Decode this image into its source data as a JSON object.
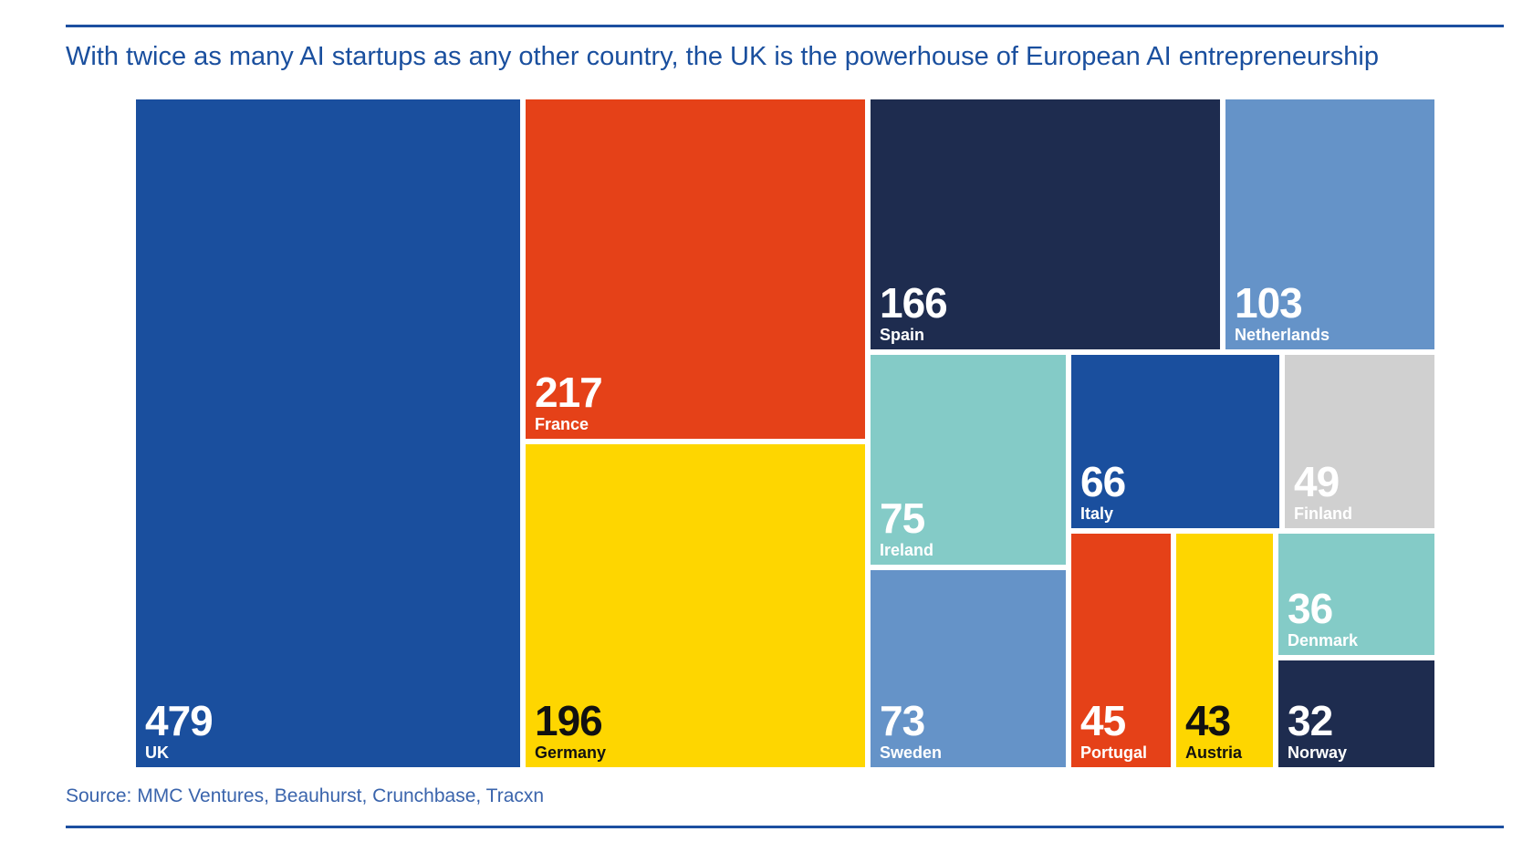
{
  "title": "With twice as many AI startups as any other country, the UK is the powerhouse of European AI entrepreneurship",
  "source": "Source: MMC Ventures, Beauhurst, Crunchbase, Tracxn",
  "colors": {
    "rule": "#1c4fa0",
    "title": "#1a4f9e",
    "source": "#3a64ac"
  },
  "chart_data": {
    "type": "treemap",
    "title": "With twice as many AI startups as any other country, the UK is the powerhouse of European AI entrepreneurship",
    "categories": [
      "UK",
      "France",
      "Germany",
      "Spain",
      "Netherlands",
      "Ireland",
      "Sweden",
      "Italy",
      "Finland",
      "Portugal",
      "Austria",
      "Denmark",
      "Norway"
    ],
    "values": [
      479,
      217,
      196,
      166,
      103,
      75,
      73,
      66,
      49,
      45,
      43,
      36,
      32
    ],
    "colors": [
      "#1a4f9e",
      "#e54118",
      "#fed600",
      "#1e2c4f",
      "#6593c8",
      "#84cbc7",
      "#6593c8",
      "#1a4f9e",
      "#d0d0d0",
      "#e54118",
      "#fed600",
      "#84cbc7",
      "#1e2c4f"
    ],
    "text_colors": [
      "#ffffff",
      "#ffffff",
      "#111111",
      "#ffffff",
      "#ffffff",
      "#ffffff",
      "#ffffff",
      "#ffffff",
      "#ffffff",
      "#ffffff",
      "#111111",
      "#ffffff",
      "#ffffff"
    ]
  }
}
